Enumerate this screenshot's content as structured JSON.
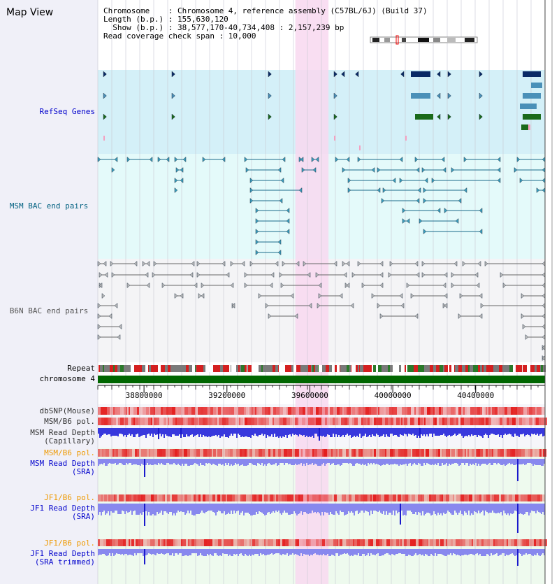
{
  "title": "Map View",
  "header": {
    "line1": "Chromosome    : Chromosome 4, reference assembly (C57BL/6J) (Build 37)",
    "line2": "Length (b.p.) : 155,630,120",
    "line3": "  Show (b.p.) : 38,577,170-40,734,408 : 2,157,239 bp",
    "line4": "Read coverage check span : 10,000"
  },
  "tracks": {
    "refseq": "RefSeq Genes",
    "msm_bac": "MSM BAC end pairs",
    "b6n_bac": "B6N BAC end pairs",
    "repeat": "Repeat",
    "chromosome": "chromosome 4",
    "dbsnp": "dbSNP(Mouse)",
    "msm_b6_pol": "MSM/B6 pol.",
    "msm_depth_cap_1": "MSM Read Depth",
    "msm_depth_cap_2": "(Capillary)",
    "msm_b6_pol_sra": "MSM/B6 pol.",
    "msm_depth_sra_1": "MSM Read Depth",
    "msm_depth_sra_2": "(SRA)",
    "jf1_b6_pol": "JF1/B6 pol.",
    "jf1_depth_sra_1": "JF1 Read Depth",
    "jf1_depth_sra_2": "(SRA)",
    "jf1_b6_pol_trim": "JF1/B6 pol.",
    "jf1_depth_trim_1": "JF1 Read Depth",
    "jf1_depth_trim_2": "(SRA trimmed)"
  },
  "axis": {
    "ticks": [
      "38800000",
      "39200000",
      "39600000",
      "40000000",
      "40400000"
    ],
    "tick_values": [
      38800000,
      39200000,
      39600000,
      40000000,
      40400000
    ],
    "range": [
      38577170,
      40734408
    ]
  },
  "highlight": {
    "from": 39530000,
    "to": 39690000
  },
  "colors": {
    "refseq_bg": "#d4f0f8",
    "msm_bg": "#e4fafa",
    "b6n_bg": "#f4f4f6",
    "depth_bg": "#eefaee",
    "highlight": "#f8d8f0",
    "label_blue": "#0000cc",
    "label_teal": "#006080",
    "label_gray": "#555555",
    "label_orange": "#ee9900",
    "chromosome": "#006600",
    "depth_bar": "#8888ee",
    "depth_bar_dark": "#1a1acc"
  }
}
